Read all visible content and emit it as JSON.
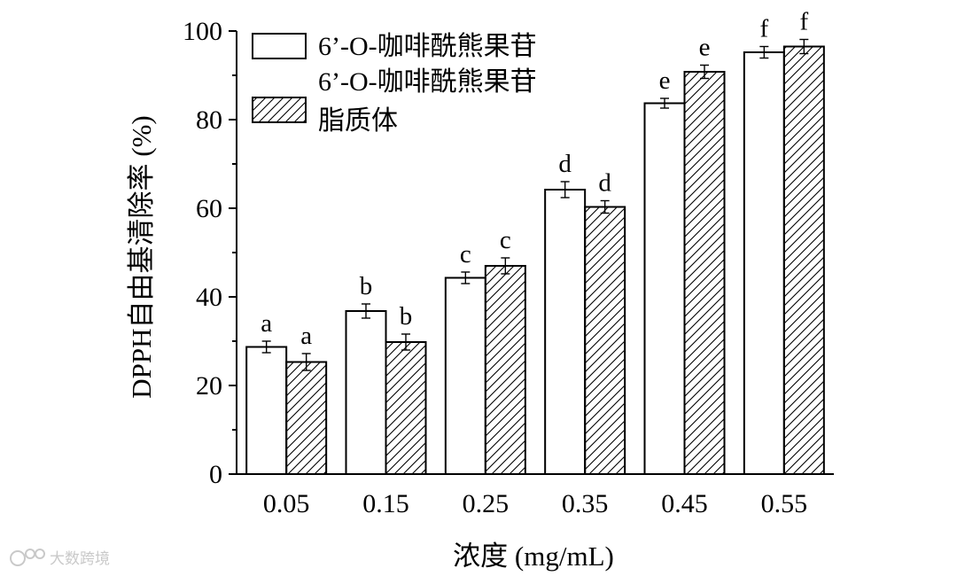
{
  "chart_data": {
    "type": "bar",
    "categories": [
      "0.05",
      "0.15",
      "0.25",
      "0.35",
      "0.45",
      "0.55"
    ],
    "xlabel": "浓度 (mg/mL)",
    "ylabel": "DPPH自由基清除率 (%)",
    "ylim": [
      0,
      100
    ],
    "yticks": [
      "0",
      "20",
      "40",
      "60",
      "80",
      "100"
    ],
    "series": [
      {
        "name": "6’-O-咖啡酰熊果苷",
        "pattern": "open",
        "values": [
          28.7,
          36.8,
          44.3,
          64.2,
          83.7,
          95.2
        ],
        "errors": [
          1.3,
          1.6,
          1.3,
          1.8,
          1.1,
          1.3
        ],
        "labels": [
          "a",
          "b",
          "c",
          "d",
          "e",
          "f"
        ]
      },
      {
        "name": "6’-O-咖啡酰熊果苷脂质体",
        "pattern": "hatched",
        "values": [
          25.3,
          29.8,
          47.0,
          60.3,
          90.8,
          96.5
        ],
        "errors": [
          1.9,
          1.8,
          1.8,
          1.4,
          1.5,
          1.6
        ],
        "labels": [
          "a",
          "b",
          "c",
          "d",
          "e",
          "f"
        ]
      }
    ],
    "legend": {
      "position": "top-left",
      "lines": [
        [
          "6’-O-咖啡酰熊果苷"
        ],
        [
          "6’-O-咖啡酰熊果苷",
          "脂质体"
        ]
      ]
    },
    "grid": false
  },
  "watermark": {
    "text": "大数跨境"
  },
  "colors": {
    "bar_outline": "#000000",
    "hatch": "#000000",
    "bar_fill": "#ffffff"
  }
}
